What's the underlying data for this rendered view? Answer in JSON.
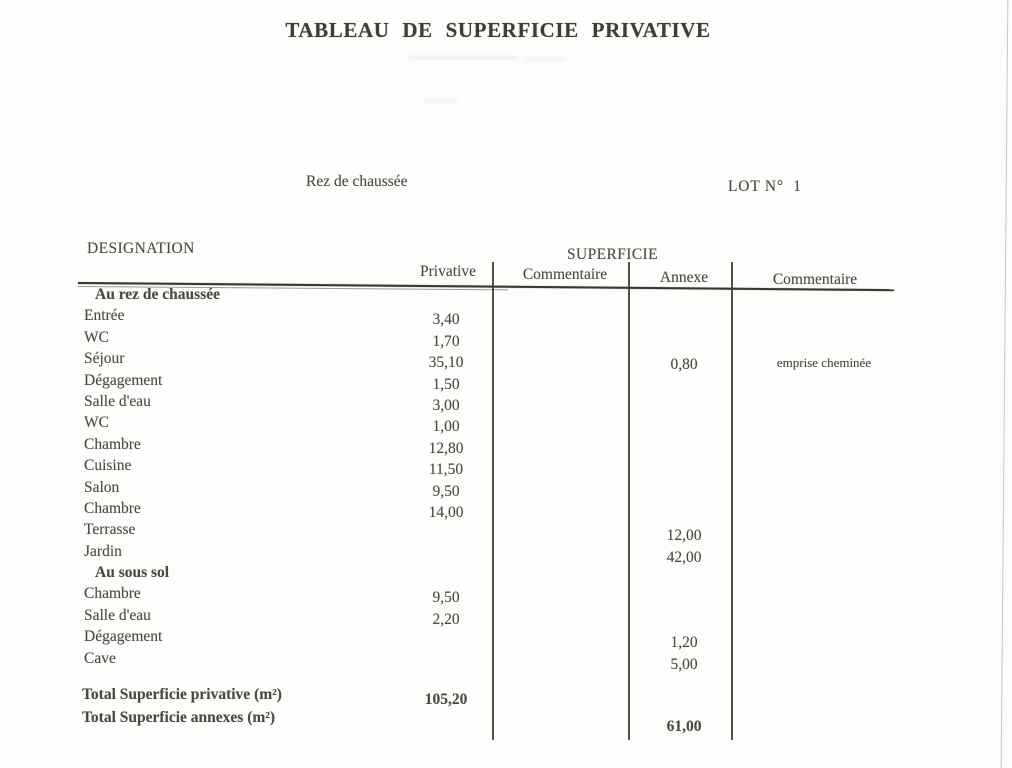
{
  "document": {
    "title": "TABLEAU DE SUPERFICIE PRIVATIVE",
    "floor_label": "Rez de chaussée",
    "lot_label": "LOT N°  1"
  },
  "table": {
    "designation_header": "DESIGNATION",
    "superficie_header": "SUPERFICIE",
    "columns": [
      "Privative",
      "Commentaire",
      "Annexe",
      "Commentaire"
    ],
    "rows": [
      {
        "label": "Au rez de chaussée",
        "section": true,
        "privative": "",
        "commentaire": "",
        "annexe": "",
        "commentaire2": ""
      },
      {
        "label": "Entrée",
        "section": false,
        "privative": "3,40",
        "commentaire": "",
        "annexe": "",
        "commentaire2": ""
      },
      {
        "label": "WC",
        "section": false,
        "privative": "1,70",
        "commentaire": "",
        "annexe": "",
        "commentaire2": ""
      },
      {
        "label": "Séjour",
        "section": false,
        "privative": "35,10",
        "commentaire": "",
        "annexe": "0,80",
        "commentaire2": "emprise cheminée"
      },
      {
        "label": "Dégagement",
        "section": false,
        "privative": "1,50",
        "commentaire": "",
        "annexe": "",
        "commentaire2": ""
      },
      {
        "label": "Salle d'eau",
        "section": false,
        "privative": "3,00",
        "commentaire": "",
        "annexe": "",
        "commentaire2": ""
      },
      {
        "label": "WC",
        "section": false,
        "privative": "1,00",
        "commentaire": "",
        "annexe": "",
        "commentaire2": ""
      },
      {
        "label": "Chambre",
        "section": false,
        "privative": "12,80",
        "commentaire": "",
        "annexe": "",
        "commentaire2": ""
      },
      {
        "label": "Cuisine",
        "section": false,
        "privative": "11,50",
        "commentaire": "",
        "annexe": "",
        "commentaire2": ""
      },
      {
        "label": "Salon",
        "section": false,
        "privative": "9,50",
        "commentaire": "",
        "annexe": "",
        "commentaire2": ""
      },
      {
        "label": "Chambre",
        "section": false,
        "privative": "14,00",
        "commentaire": "",
        "annexe": "",
        "commentaire2": ""
      },
      {
        "label": "Terrasse",
        "section": false,
        "privative": "",
        "commentaire": "",
        "annexe": "12,00",
        "commentaire2": ""
      },
      {
        "label": "Jardin",
        "section": false,
        "privative": "",
        "commentaire": "",
        "annexe": "42,00",
        "commentaire2": ""
      },
      {
        "label": "Au sous sol",
        "section": true,
        "privative": "",
        "commentaire": "",
        "annexe": "",
        "commentaire2": ""
      },
      {
        "label": "Chambre",
        "section": false,
        "privative": "9,50",
        "commentaire": "",
        "annexe": "",
        "commentaire2": ""
      },
      {
        "label": "Salle d'eau",
        "section": false,
        "privative": "2,20",
        "commentaire": "",
        "annexe": "",
        "commentaire2": ""
      },
      {
        "label": "Dégagement",
        "section": false,
        "privative": "",
        "commentaire": "",
        "annexe": "1,20",
        "commentaire2": ""
      },
      {
        "label": "Cave",
        "section": false,
        "privative": "",
        "commentaire": "",
        "annexe": "5,00",
        "commentaire2": ""
      }
    ],
    "totals": [
      {
        "label": "Total Superficie privative (m²)",
        "privative": "105,20"
      },
      {
        "label": "Total Superficie annexes (m²)",
        "annexe": "61,00"
      }
    ]
  },
  "colors": {
    "ink": "#474c40",
    "title_ink": "#3a4034",
    "line": "#343a2e",
    "paper": "#fdfdfc"
  }
}
